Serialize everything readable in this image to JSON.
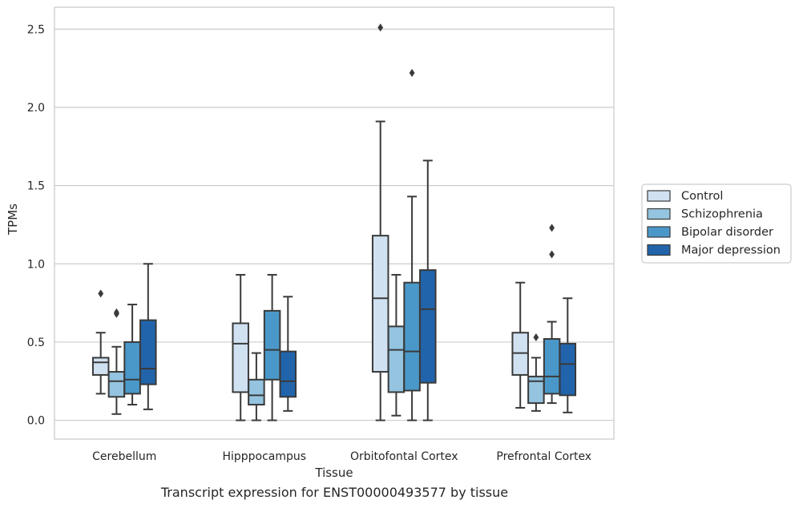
{
  "chart_data": {
    "type": "box",
    "xlabel": "Tissue",
    "ylabel": "TPMs",
    "ylim": [
      -0.12,
      2.64
    ],
    "yticks": [
      "0.0",
      "0.5",
      "1.0",
      "1.5",
      "2.0",
      "2.5"
    ],
    "grid": "horizontal",
    "legend_position": "right",
    "categories": [
      "Cerebellum",
      "Hipppocampus",
      "Orbitofontal Cortex",
      "Prefrontal Cortex"
    ],
    "series": [
      {
        "name": "Control",
        "color": "#d0e1f2",
        "boxes": [
          {
            "whisker_low": 0.17,
            "q1": 0.29,
            "median": 0.37,
            "q3": 0.4,
            "whisker_high": 0.56,
            "outliers": [
              0.81
            ]
          },
          {
            "whisker_low": 0.0,
            "q1": 0.18,
            "median": 0.49,
            "q3": 0.62,
            "whisker_high": 0.93,
            "outliers": []
          },
          {
            "whisker_low": 0.0,
            "q1": 0.31,
            "median": 0.78,
            "q3": 1.18,
            "whisker_high": 1.91,
            "outliers": [
              2.51
            ]
          },
          {
            "whisker_low": 0.08,
            "q1": 0.29,
            "median": 0.43,
            "q3": 0.56,
            "whisker_high": 0.88,
            "outliers": []
          }
        ]
      },
      {
        "name": "Schizophrenia",
        "color": "#94c4df",
        "boxes": [
          {
            "whisker_low": 0.04,
            "q1": 0.15,
            "median": 0.25,
            "q3": 0.31,
            "whisker_high": 0.47,
            "outliers": [
              0.68,
              0.69
            ]
          },
          {
            "whisker_low": 0.0,
            "q1": 0.1,
            "median": 0.16,
            "q3": 0.26,
            "whisker_high": 0.43,
            "outliers": []
          },
          {
            "whisker_low": 0.03,
            "q1": 0.18,
            "median": 0.45,
            "q3": 0.6,
            "whisker_high": 0.93,
            "outliers": []
          },
          {
            "whisker_low": 0.06,
            "q1": 0.11,
            "median": 0.25,
            "q3": 0.28,
            "whisker_high": 0.4,
            "outliers": [
              0.53
            ]
          }
        ]
      },
      {
        "name": "Bipolar disorder",
        "color": "#4a98c9",
        "boxes": [
          {
            "whisker_low": 0.1,
            "q1": 0.17,
            "median": 0.26,
            "q3": 0.5,
            "whisker_high": 0.74,
            "outliers": []
          },
          {
            "whisker_low": 0.0,
            "q1": 0.26,
            "median": 0.45,
            "q3": 0.7,
            "whisker_high": 0.93,
            "outliers": []
          },
          {
            "whisker_low": 0.0,
            "q1": 0.19,
            "median": 0.44,
            "q3": 0.88,
            "whisker_high": 1.43,
            "outliers": [
              2.22
            ]
          },
          {
            "whisker_low": 0.11,
            "q1": 0.17,
            "median": 0.28,
            "q3": 0.52,
            "whisker_high": 0.63,
            "outliers": [
              1.06,
              1.23
            ]
          }
        ]
      },
      {
        "name": "Major depression",
        "color": "#2164ab",
        "boxes": [
          {
            "whisker_low": 0.07,
            "q1": 0.23,
            "median": 0.33,
            "q3": 0.64,
            "whisker_high": 1.0,
            "outliers": []
          },
          {
            "whisker_low": 0.06,
            "q1": 0.15,
            "median": 0.25,
            "q3": 0.44,
            "whisker_high": 0.79,
            "outliers": []
          },
          {
            "whisker_low": 0.0,
            "q1": 0.24,
            "median": 0.71,
            "q3": 0.96,
            "whisker_high": 1.66,
            "outliers": []
          },
          {
            "whisker_low": 0.05,
            "q1": 0.16,
            "median": 0.36,
            "q3": 0.49,
            "whisker_high": 0.78,
            "outliers": []
          }
        ]
      }
    ]
  },
  "caption": "Transcript expression for ENST00000493577 by tissue",
  "colors": {
    "grid": "#cccccc",
    "frame": "#cccccc",
    "stroke": "#3a3a3a"
  }
}
